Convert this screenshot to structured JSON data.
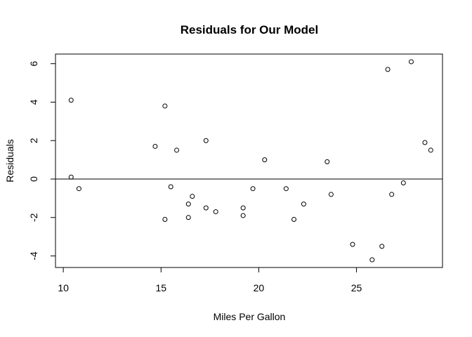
{
  "chart_data": {
    "type": "scatter",
    "title": "Residuals for Our Model",
    "xlabel": "Miles Per Gallon",
    "ylabel": "Residuals",
    "xlim": [
      9.6,
      29.4
    ],
    "ylim": [
      -4.6,
      6.5
    ],
    "xticks": [
      10,
      15,
      20,
      25
    ],
    "yticks": [
      -4,
      -2,
      0,
      2,
      4,
      6
    ],
    "reference_line_y": 0,
    "grid": false,
    "legend": "none",
    "marker_style": "open-circle",
    "colors": {
      "marker": "#000000",
      "axes": "#000000",
      "background": "#ffffff"
    },
    "points": [
      {
        "x": 10.4,
        "y": 0.1
      },
      {
        "x": 10.4,
        "y": 4.1
      },
      {
        "x": 10.8,
        "y": -0.5
      },
      {
        "x": 14.7,
        "y": 1.7
      },
      {
        "x": 15.2,
        "y": 3.8
      },
      {
        "x": 15.2,
        "y": -2.1
      },
      {
        "x": 15.5,
        "y": -0.4
      },
      {
        "x": 15.8,
        "y": 1.5
      },
      {
        "x": 16.4,
        "y": -1.3
      },
      {
        "x": 16.4,
        "y": -2.0
      },
      {
        "x": 16.6,
        "y": -0.9
      },
      {
        "x": 17.3,
        "y": 2.0
      },
      {
        "x": 17.3,
        "y": -1.5
      },
      {
        "x": 17.8,
        "y": -1.7
      },
      {
        "x": 19.2,
        "y": -1.5
      },
      {
        "x": 19.2,
        "y": -1.9
      },
      {
        "x": 19.7,
        "y": -0.5
      },
      {
        "x": 20.3,
        "y": 1.0
      },
      {
        "x": 21.4,
        "y": -0.5
      },
      {
        "x": 21.8,
        "y": -2.1
      },
      {
        "x": 22.3,
        "y": -1.3
      },
      {
        "x": 23.5,
        "y": 0.9
      },
      {
        "x": 23.7,
        "y": -0.8
      },
      {
        "x": 24.8,
        "y": -3.4
      },
      {
        "x": 25.8,
        "y": -4.2
      },
      {
        "x": 26.3,
        "y": -3.5
      },
      {
        "x": 26.6,
        "y": 5.7
      },
      {
        "x": 26.8,
        "y": -0.8
      },
      {
        "x": 27.4,
        "y": -0.2
      },
      {
        "x": 27.8,
        "y": 6.1
      },
      {
        "x": 28.5,
        "y": 1.9
      },
      {
        "x": 28.8,
        "y": 1.5
      }
    ]
  }
}
